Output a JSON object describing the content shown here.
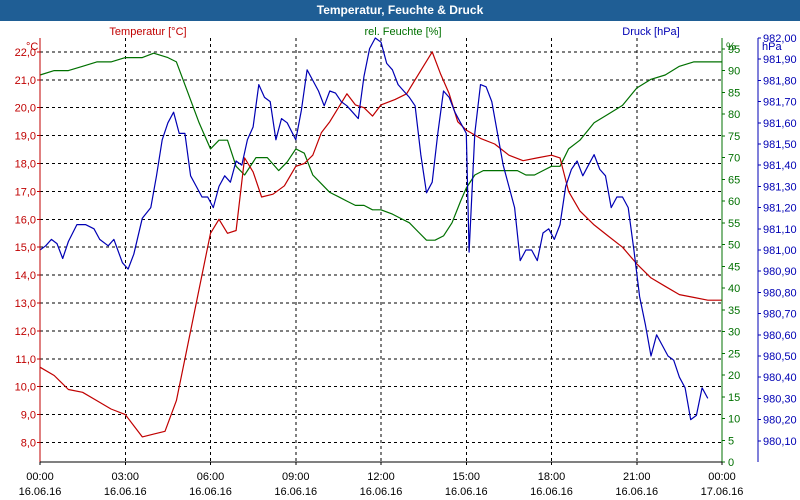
{
  "window": {
    "title": "Temperatur, Feuchte & Druck"
  },
  "colors": {
    "temperature": "#c00000",
    "humidity": "#007000",
    "pressure": "#0000b4",
    "grid": "#000000",
    "titlebar": "#1f5e95"
  },
  "chart_data": {
    "type": "line",
    "title": "Temperatur, Feuchte & Druck",
    "grid": true,
    "x_ticks": [
      {
        "hour": 0,
        "time": "00:00",
        "date": "16.06.16"
      },
      {
        "hour": 3,
        "time": "03:00",
        "date": "16.06.16"
      },
      {
        "hour": 6,
        "time": "06:00",
        "date": "16.06.16"
      },
      {
        "hour": 9,
        "time": "09:00",
        "date": "16.06.16"
      },
      {
        "hour": 12,
        "time": "12:00",
        "date": "16.06.16"
      },
      {
        "hour": 15,
        "time": "15:00",
        "date": "16.06.16"
      },
      {
        "hour": 18,
        "time": "18:00",
        "date": "16.06.16"
      },
      {
        "hour": 21,
        "time": "21:00",
        "date": "16.06.16"
      },
      {
        "hour": 24,
        "time": "00:00",
        "date": "17.06.16"
      }
    ],
    "axes": {
      "temperature": {
        "unit": "°C",
        "label": "Temperatur [°C]",
        "range": [
          7.3,
          22.5
        ],
        "ticks": [
          "22,0",
          "21,0",
          "20,0",
          "19,0",
          "18,0",
          "17,0",
          "16,0",
          "15,0",
          "14,0",
          "13,0",
          "12,0",
          "11,0",
          "10,0",
          "9,0",
          "8,0"
        ]
      },
      "humidity": {
        "unit": "%",
        "label": "rel. Feuchte [%]",
        "range": [
          0,
          97.5
        ],
        "ticks": [
          "95",
          "90",
          "85",
          "80",
          "75",
          "70",
          "65",
          "60",
          "55",
          "50",
          "45",
          "40",
          "35",
          "30",
          "25",
          "20",
          "15",
          "10",
          "5",
          "0"
        ]
      },
      "pressure": {
        "unit": "hPa",
        "label": "Druck [hPa]",
        "range": [
          980.0,
          982.0
        ],
        "ticks": [
          "982,00",
          "981,90",
          "981,80",
          "981,70",
          "981,60",
          "981,50",
          "981,40",
          "981,30",
          "981,20",
          "981,10",
          "981,00",
          "980,90",
          "980,80",
          "980,70",
          "980,60",
          "980,50",
          "980,40",
          "980,30",
          "980,20",
          "980,10"
        ]
      }
    },
    "series": [
      {
        "name": "Temperatur [°C]",
        "axis": "temperature",
        "points": [
          [
            0,
            10.7
          ],
          [
            0.5,
            10.4
          ],
          [
            1,
            9.9
          ],
          [
            1.5,
            9.8
          ],
          [
            2,
            9.5
          ],
          [
            2.5,
            9.2
          ],
          [
            3,
            9.0
          ],
          [
            3.3,
            8.6
          ],
          [
            3.6,
            8.2
          ],
          [
            4,
            8.3
          ],
          [
            4.4,
            8.4
          ],
          [
            4.8,
            9.5
          ],
          [
            5.2,
            11.5
          ],
          [
            5.6,
            13.5
          ],
          [
            6,
            15.5
          ],
          [
            6.3,
            16.0
          ],
          [
            6.6,
            15.5
          ],
          [
            6.9,
            15.6
          ],
          [
            7.2,
            18.2
          ],
          [
            7.5,
            17.7
          ],
          [
            7.8,
            16.8
          ],
          [
            8.2,
            16.9
          ],
          [
            8.6,
            17.2
          ],
          [
            9,
            17.9
          ],
          [
            9.3,
            18.0
          ],
          [
            9.6,
            18.3
          ],
          [
            9.9,
            19.1
          ],
          [
            10.2,
            19.5
          ],
          [
            10.5,
            20.0
          ],
          [
            10.8,
            20.5
          ],
          [
            11.1,
            20.1
          ],
          [
            11.4,
            20.0
          ],
          [
            11.7,
            19.7
          ],
          [
            12,
            20.1
          ],
          [
            12.5,
            20.3
          ],
          [
            12.9,
            20.5
          ],
          [
            13.2,
            21.0
          ],
          [
            13.5,
            21.5
          ],
          [
            13.8,
            22.0
          ],
          [
            14.1,
            21.2
          ],
          [
            14.4,
            20.5
          ],
          [
            14.7,
            19.5
          ],
          [
            15,
            19.2
          ],
          [
            15.5,
            18.9
          ],
          [
            16,
            18.7
          ],
          [
            16.5,
            18.3
          ],
          [
            17,
            18.1
          ],
          [
            17.5,
            18.2
          ],
          [
            18,
            18.3
          ],
          [
            18.3,
            18.2
          ],
          [
            18.6,
            17.0
          ],
          [
            19,
            16.3
          ],
          [
            19.5,
            15.8
          ],
          [
            20,
            15.4
          ],
          [
            20.5,
            15.0
          ],
          [
            21,
            14.4
          ],
          [
            21.5,
            13.9
          ],
          [
            22,
            13.6
          ],
          [
            22.5,
            13.3
          ],
          [
            23,
            13.2
          ],
          [
            23.5,
            13.1
          ],
          [
            24,
            13.1
          ]
        ]
      },
      {
        "name": "rel. Feuchte [%]",
        "axis": "humidity",
        "points": [
          [
            0,
            89
          ],
          [
            0.5,
            90
          ],
          [
            1,
            90
          ],
          [
            1.5,
            91
          ],
          [
            2,
            92
          ],
          [
            2.5,
            92
          ],
          [
            3,
            93
          ],
          [
            3.3,
            93
          ],
          [
            3.6,
            93
          ],
          [
            4,
            94
          ],
          [
            4.5,
            93
          ],
          [
            4.8,
            92
          ],
          [
            5.2,
            85
          ],
          [
            5.6,
            78
          ],
          [
            6,
            72
          ],
          [
            6.3,
            74
          ],
          [
            6.6,
            74
          ],
          [
            6.9,
            68
          ],
          [
            7.2,
            66
          ],
          [
            7.6,
            70
          ],
          [
            8,
            70
          ],
          [
            8.4,
            67
          ],
          [
            8.7,
            69
          ],
          [
            9,
            72
          ],
          [
            9.3,
            71
          ],
          [
            9.6,
            66
          ],
          [
            9.9,
            64
          ],
          [
            10.2,
            62
          ],
          [
            10.5,
            61
          ],
          [
            10.8,
            60
          ],
          [
            11.1,
            59
          ],
          [
            11.4,
            59
          ],
          [
            11.7,
            58
          ],
          [
            12,
            58
          ],
          [
            12.4,
            57
          ],
          [
            12.7,
            56
          ],
          [
            13,
            55
          ],
          [
            13.3,
            53
          ],
          [
            13.6,
            51
          ],
          [
            13.9,
            51
          ],
          [
            14.2,
            52
          ],
          [
            14.5,
            55
          ],
          [
            14.8,
            60
          ],
          [
            15,
            63
          ],
          [
            15.3,
            66
          ],
          [
            15.6,
            67
          ],
          [
            16,
            67
          ],
          [
            16.4,
            67
          ],
          [
            16.8,
            67
          ],
          [
            17.1,
            66
          ],
          [
            17.4,
            66
          ],
          [
            17.7,
            67
          ],
          [
            18,
            68
          ],
          [
            18.3,
            68
          ],
          [
            18.6,
            72
          ],
          [
            19,
            74
          ],
          [
            19.5,
            78
          ],
          [
            20,
            80
          ],
          [
            20.5,
            82
          ],
          [
            21,
            86
          ],
          [
            21.5,
            88
          ],
          [
            22,
            89
          ],
          [
            22.5,
            91
          ],
          [
            23,
            92
          ],
          [
            23.5,
            92
          ],
          [
            24,
            92
          ]
        ]
      },
      {
        "name": "Druck [hPa]",
        "axis": "pressure",
        "points": [
          [
            0,
            981.0
          ],
          [
            0.2,
            981.02
          ],
          [
            0.4,
            981.05
          ],
          [
            0.6,
            981.03
          ],
          [
            0.8,
            980.96
          ],
          [
            1,
            981.04
          ],
          [
            1.3,
            981.12
          ],
          [
            1.6,
            981.12
          ],
          [
            1.9,
            981.1
          ],
          [
            2.1,
            981.05
          ],
          [
            2.4,
            981.02
          ],
          [
            2.6,
            981.05
          ],
          [
            2.9,
            980.94
          ],
          [
            3.1,
            980.91
          ],
          [
            3.3,
            980.98
          ],
          [
            3.6,
            981.15
          ],
          [
            3.9,
            981.2
          ],
          [
            4.1,
            981.35
          ],
          [
            4.3,
            981.52
          ],
          [
            4.5,
            981.6
          ],
          [
            4.7,
            981.65
          ],
          [
            4.9,
            981.55
          ],
          [
            5.1,
            981.55
          ],
          [
            5.3,
            981.35
          ],
          [
            5.5,
            981.3
          ],
          [
            5.7,
            981.25
          ],
          [
            5.9,
            981.25
          ],
          [
            6.1,
            981.2
          ],
          [
            6.3,
            981.3
          ],
          [
            6.5,
            981.35
          ],
          [
            6.7,
            981.32
          ],
          [
            6.9,
            981.42
          ],
          [
            7.1,
            981.4
          ],
          [
            7.3,
            981.52
          ],
          [
            7.5,
            981.58
          ],
          [
            7.7,
            981.78
          ],
          [
            7.9,
            981.72
          ],
          [
            8.1,
            981.7
          ],
          [
            8.3,
            981.52
          ],
          [
            8.5,
            981.62
          ],
          [
            8.7,
            981.6
          ],
          [
            9,
            981.52
          ],
          [
            9.2,
            981.66
          ],
          [
            9.4,
            981.85
          ],
          [
            9.6,
            981.8
          ],
          [
            9.8,
            981.75
          ],
          [
            10,
            981.68
          ],
          [
            10.2,
            981.75
          ],
          [
            10.4,
            981.74
          ],
          [
            10.6,
            981.7
          ],
          [
            10.8,
            981.68
          ],
          [
            11,
            981.65
          ],
          [
            11.2,
            981.62
          ],
          [
            11.4,
            981.82
          ],
          [
            11.6,
            981.95
          ],
          [
            11.8,
            982.0
          ],
          [
            12,
            981.98
          ],
          [
            12.2,
            981.88
          ],
          [
            12.4,
            981.85
          ],
          [
            12.6,
            981.78
          ],
          [
            12.8,
            981.75
          ],
          [
            13,
            981.72
          ],
          [
            13.2,
            981.68
          ],
          [
            13.4,
            981.45
          ],
          [
            13.6,
            981.27
          ],
          [
            13.8,
            981.32
          ],
          [
            14,
            981.55
          ],
          [
            14.2,
            981.75
          ],
          [
            14.4,
            981.72
          ],
          [
            14.6,
            981.65
          ],
          [
            14.8,
            981.6
          ],
          [
            15,
            981.55
          ],
          [
            15.1,
            980.99
          ],
          [
            15.3,
            981.55
          ],
          [
            15.5,
            981.78
          ],
          [
            15.7,
            981.77
          ],
          [
            15.9,
            981.7
          ],
          [
            16.1,
            981.55
          ],
          [
            16.3,
            981.4
          ],
          [
            16.5,
            981.3
          ],
          [
            16.7,
            981.2
          ],
          [
            16.9,
            980.95
          ],
          [
            17.1,
            981.0
          ],
          [
            17.3,
            981.0
          ],
          [
            17.5,
            980.95
          ],
          [
            17.7,
            981.08
          ],
          [
            17.9,
            981.1
          ],
          [
            18.1,
            981.05
          ],
          [
            18.3,
            981.12
          ],
          [
            18.5,
            981.3
          ],
          [
            18.7,
            981.38
          ],
          [
            18.9,
            981.42
          ],
          [
            19.1,
            981.35
          ],
          [
            19.3,
            981.4
          ],
          [
            19.5,
            981.45
          ],
          [
            19.7,
            981.38
          ],
          [
            19.9,
            981.35
          ],
          [
            20.1,
            981.2
          ],
          [
            20.3,
            981.25
          ],
          [
            20.5,
            981.25
          ],
          [
            20.7,
            981.2
          ],
          [
            20.9,
            981.0
          ],
          [
            21.1,
            980.78
          ],
          [
            21.3,
            980.65
          ],
          [
            21.5,
            980.5
          ],
          [
            21.7,
            980.6
          ],
          [
            21.9,
            980.55
          ],
          [
            22.1,
            980.5
          ],
          [
            22.3,
            980.48
          ],
          [
            22.5,
            980.4
          ],
          [
            22.7,
            980.35
          ],
          [
            22.9,
            980.2
          ],
          [
            23.1,
            980.22
          ],
          [
            23.3,
            980.35
          ],
          [
            23.5,
            980.3
          ]
        ]
      }
    ]
  }
}
